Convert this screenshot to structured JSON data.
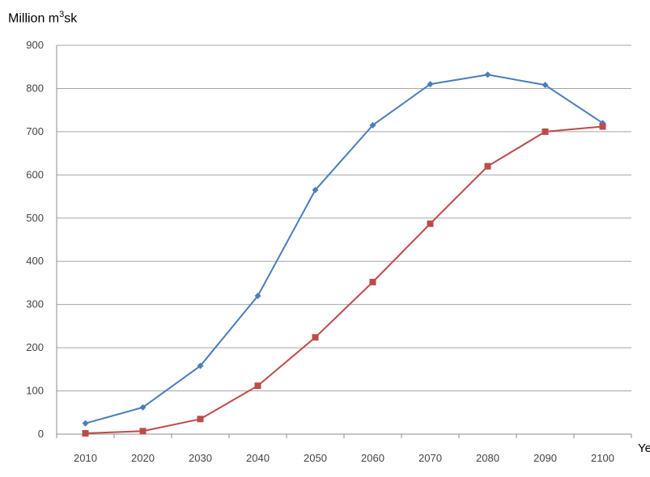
{
  "chart_data": {
    "type": "line",
    "ylabel": "Million m³sk",
    "ylabel_base": "Million m",
    "ylabel_sup": "3",
    "ylabel_tail": "sk",
    "xlabel": "Ye",
    "x": [
      2010,
      2020,
      2030,
      2040,
      2050,
      2060,
      2070,
      2080,
      2090,
      2100
    ],
    "x_ticks": [
      "2010",
      "2020",
      "2030",
      "2040",
      "2050",
      "2060",
      "2070",
      "2080",
      "2090",
      "2100"
    ],
    "y_ticks": [
      "0",
      "100",
      "200",
      "300",
      "400",
      "500",
      "600",
      "700",
      "800",
      "900"
    ],
    "ylim": [
      0,
      900
    ],
    "grid": true,
    "series": [
      {
        "color": "#4a7ebb",
        "marker": "diamond",
        "values": [
          25,
          62,
          158,
          320,
          565,
          715,
          810,
          832,
          808,
          720
        ]
      },
      {
        "color": "#be4b48",
        "marker": "square",
        "values": [
          2,
          7,
          35,
          112,
          224,
          352,
          487,
          620,
          700,
          712
        ]
      }
    ]
  }
}
